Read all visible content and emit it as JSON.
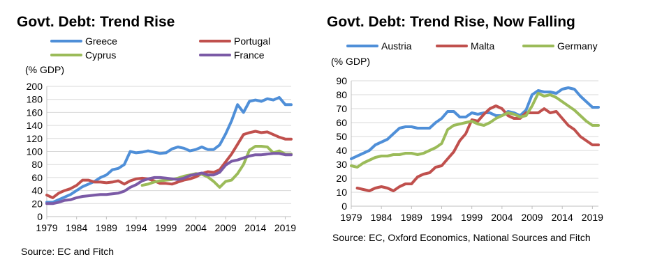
{
  "chart_data": [
    {
      "type": "line",
      "title": "Govt. Debt: Trend Rise",
      "ylabel": "(% GDP)",
      "xlabel": "",
      "ylim": [
        0,
        200
      ],
      "yticks": [
        "0",
        "20",
        "40",
        "60",
        "80",
        "100",
        "120",
        "140",
        "160",
        "180",
        "200"
      ],
      "xlim": [
        1979,
        2020
      ],
      "xticks": [
        "1979",
        "1984",
        "1989",
        "1994",
        "1999",
        "2004",
        "2009",
        "2014",
        "2019"
      ],
      "grid": true,
      "legend": "top",
      "source": "Source: EC and Fitch",
      "series": [
        {
          "name": "Greece",
          "color": "#4f8fd8",
          "x": [
            1979,
            1980,
            1981,
            1982,
            1983,
            1984,
            1985,
            1986,
            1987,
            1988,
            1989,
            1990,
            1991,
            1992,
            1993,
            1994,
            1995,
            1996,
            1997,
            1998,
            1999,
            2000,
            2001,
            2002,
            2003,
            2004,
            2005,
            2006,
            2007,
            2008,
            2009,
            2010,
            2011,
            2012,
            2013,
            2014,
            2015,
            2016,
            2017,
            2018,
            2019,
            2020
          ],
          "values": [
            22,
            22,
            26,
            30,
            34,
            40,
            46,
            50,
            54,
            60,
            64,
            72,
            74,
            80,
            100,
            98,
            99,
            101,
            99,
            97,
            98,
            104,
            107,
            105,
            101,
            103,
            107,
            103,
            103,
            110,
            127,
            147,
            172,
            160,
            177,
            179,
            177,
            181,
            179,
            183,
            172,
            172
          ]
        },
        {
          "name": "Portugal",
          "color": "#c0504d",
          "x": [
            1979,
            1980,
            1981,
            1982,
            1983,
            1984,
            1985,
            1986,
            1987,
            1988,
            1989,
            1990,
            1991,
            1992,
            1993,
            1994,
            1995,
            1996,
            1997,
            1998,
            1999,
            2000,
            2001,
            2002,
            2003,
            2004,
            2005,
            2006,
            2007,
            2008,
            2009,
            2010,
            2011,
            2012,
            2013,
            2014,
            2015,
            2016,
            2017,
            2018,
            2019,
            2020
          ],
          "values": [
            33,
            29,
            36,
            40,
            43,
            48,
            56,
            56,
            53,
            53,
            52,
            53,
            55,
            50,
            55,
            58,
            59,
            58,
            55,
            51,
            51,
            50,
            53,
            56,
            58,
            61,
            66,
            69,
            68,
            72,
            84,
            96,
            111,
            126,
            129,
            131,
            129,
            130,
            126,
            122,
            119,
            119
          ]
        },
        {
          "name": "Cyprus",
          "color": "#9bbb59",
          "x": [
            1995,
            1996,
            1997,
            1998,
            1999,
            2000,
            2001,
            2002,
            2003,
            2004,
            2005,
            2006,
            2007,
            2008,
            2009,
            2010,
            2011,
            2012,
            2013,
            2014,
            2015,
            2016,
            2017,
            2018,
            2019,
            2020
          ],
          "values": [
            48,
            50,
            53,
            55,
            56,
            57,
            59,
            62,
            64,
            66,
            65,
            61,
            54,
            45,
            54,
            56,
            66,
            80,
            102,
            108,
            108,
            107,
            98,
            101,
            96,
            96
          ]
        },
        {
          "name": "France",
          "color": "#7b5aa6",
          "x": [
            1979,
            1980,
            1981,
            1982,
            1983,
            1984,
            1985,
            1986,
            1987,
            1988,
            1989,
            1990,
            1991,
            1992,
            1993,
            1994,
            1995,
            1996,
            1997,
            1998,
            1999,
            2000,
            2001,
            2002,
            2003,
            2004,
            2005,
            2006,
            2007,
            2008,
            2009,
            2010,
            2011,
            2012,
            2013,
            2014,
            2015,
            2016,
            2017,
            2018,
            2019,
            2020
          ],
          "values": [
            20,
            20,
            22,
            25,
            26,
            29,
            31,
            32,
            33,
            34,
            34,
            35,
            36,
            39,
            45,
            49,
            55,
            58,
            60,
            60,
            59,
            58,
            57,
            59,
            63,
            65,
            67,
            64,
            64,
            68,
            79,
            85,
            87,
            90,
            93,
            95,
            95,
            96,
            97,
            97,
            95,
            95
          ]
        }
      ]
    },
    {
      "type": "line",
      "title": "Govt. Debt: Trend Rise, Now Falling",
      "ylabel": "(% GDP)",
      "xlabel": "",
      "ylim": [
        0,
        90
      ],
      "yticks": [
        "0",
        "10",
        "20",
        "30",
        "40",
        "50",
        "60",
        "70",
        "80",
        "90"
      ],
      "xlim": [
        1979,
        2020
      ],
      "xticks": [
        "1979",
        "1984",
        "1989",
        "1994",
        "1999",
        "2004",
        "2009",
        "2014",
        "2019"
      ],
      "grid": true,
      "legend": "top",
      "source": "Source: EC,  Oxford Economics, National Sources and Fitch",
      "series": [
        {
          "name": "Austria",
          "color": "#4f8fd8",
          "x": [
            1979,
            1980,
            1981,
            1982,
            1983,
            1984,
            1985,
            1986,
            1987,
            1988,
            1989,
            1990,
            1991,
            1992,
            1993,
            1994,
            1995,
            1996,
            1997,
            1998,
            1999,
            2000,
            2001,
            2002,
            2003,
            2004,
            2005,
            2006,
            2007,
            2008,
            2009,
            2010,
            2011,
            2012,
            2013,
            2014,
            2015,
            2016,
            2017,
            2018,
            2019,
            2020
          ],
          "values": [
            34,
            36,
            38,
            40,
            44,
            46,
            48,
            52,
            56,
            57,
            57,
            56,
            56,
            56,
            60,
            63,
            68,
            68,
            64,
            64,
            67,
            66,
            67,
            67,
            65,
            65,
            68,
            67,
            65,
            69,
            80,
            83,
            82,
            82,
            81,
            84,
            85,
            84,
            79,
            75,
            71,
            71
          ]
        },
        {
          "name": "Malta",
          "color": "#c0504d",
          "x": [
            1980,
            1981,
            1982,
            1983,
            1984,
            1985,
            1986,
            1987,
            1988,
            1989,
            1990,
            1991,
            1992,
            1993,
            1994,
            1995,
            1996,
            1997,
            1998,
            1999,
            2000,
            2001,
            2002,
            2003,
            2004,
            2005,
            2006,
            2007,
            2008,
            2009,
            2010,
            2011,
            2012,
            2013,
            2014,
            2015,
            2016,
            2017,
            2018,
            2019,
            2020
          ],
          "values": [
            13,
            12,
            11,
            13,
            14,
            13,
            11,
            14,
            16,
            16,
            21,
            23,
            24,
            28,
            29,
            34,
            39,
            47,
            52,
            62,
            61,
            66,
            70,
            72,
            70,
            65,
            63,
            63,
            67,
            67,
            67,
            70,
            67,
            68,
            63,
            58,
            55,
            50,
            47,
            44,
            44
          ]
        },
        {
          "name": "Germany",
          "color": "#9bbb59",
          "x": [
            1979,
            1980,
            1981,
            1982,
            1983,
            1984,
            1985,
            1986,
            1987,
            1988,
            1989,
            1990,
            1991,
            1992,
            1993,
            1994,
            1995,
            1996,
            1997,
            1998,
            1999,
            2000,
            2001,
            2002,
            2003,
            2004,
            2005,
            2006,
            2007,
            2008,
            2009,
            2010,
            2011,
            2012,
            2013,
            2014,
            2015,
            2016,
            2017,
            2018,
            2019,
            2020
          ],
          "values": [
            29,
            28,
            31,
            33,
            35,
            36,
            36,
            37,
            37,
            38,
            38,
            37,
            38,
            40,
            42,
            45,
            55,
            58,
            59,
            60,
            61,
            59,
            58,
            60,
            63,
            65,
            67,
            66,
            64,
            65,
            72,
            81,
            79,
            80,
            78,
            75,
            72,
            69,
            65,
            61,
            58,
            58
          ]
        }
      ]
    }
  ]
}
